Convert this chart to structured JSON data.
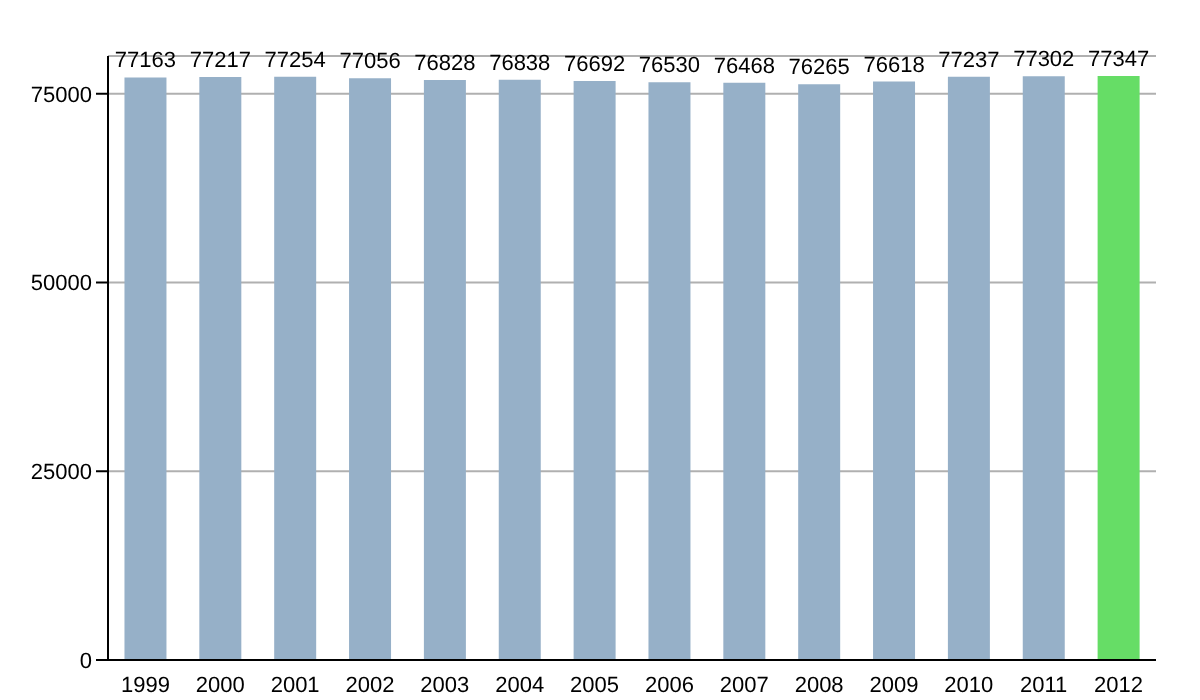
{
  "chart_data": {
    "type": "bar",
    "categories": [
      "1999",
      "2000",
      "2001",
      "2002",
      "2003",
      "2004",
      "2005",
      "2006",
      "2007",
      "2008",
      "2009",
      "2010",
      "2011",
      "2012"
    ],
    "values": [
      77163,
      77217,
      77254,
      77056,
      76828,
      76838,
      76692,
      76530,
      76468,
      76265,
      76618,
      77237,
      77302,
      77347
    ],
    "colors": [
      "#96b0c8",
      "#96b0c8",
      "#96b0c8",
      "#96b0c8",
      "#96b0c8",
      "#96b0c8",
      "#96b0c8",
      "#96b0c8",
      "#96b0c8",
      "#96b0c8",
      "#96b0c8",
      "#96b0c8",
      "#96b0c8",
      "#66dd66"
    ],
    "ylim": [
      0,
      80000
    ],
    "yticks": [
      0,
      25000,
      50000,
      75000
    ],
    "grid": "y",
    "data_labels": true
  }
}
